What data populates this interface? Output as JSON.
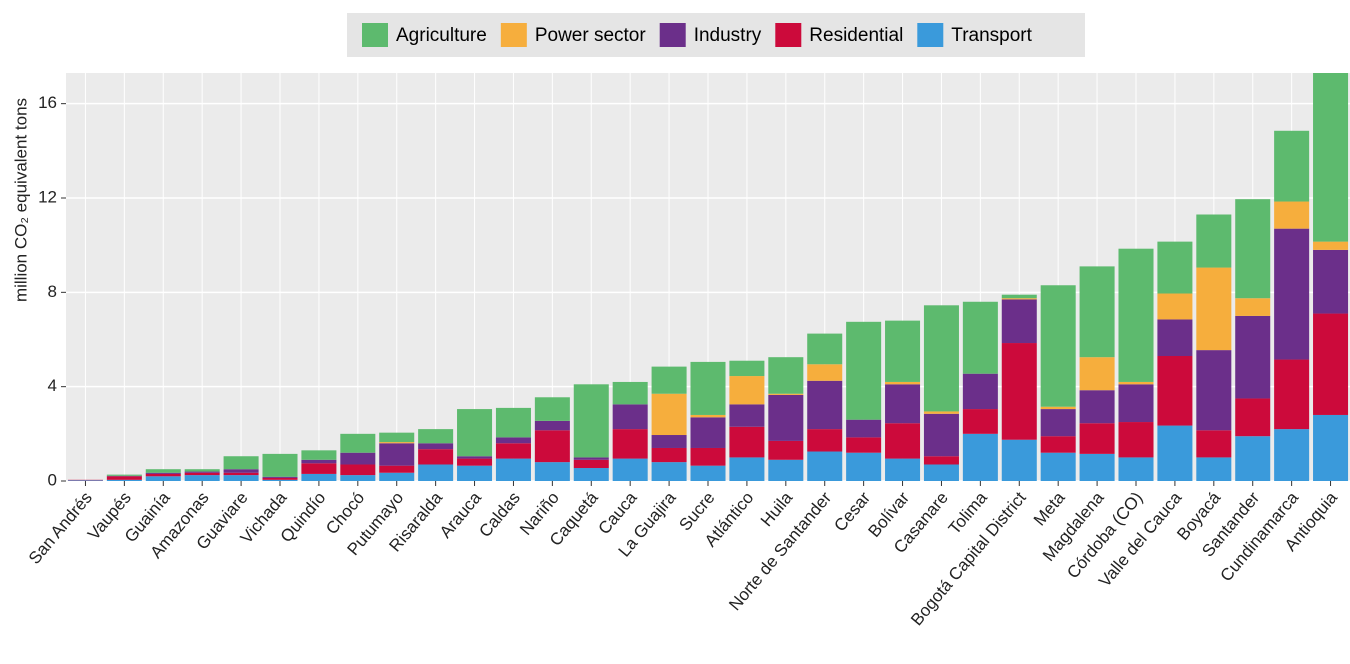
{
  "chart_data": {
    "type": "stacked_bar",
    "ylabel": "million CO₂ equivalent tons",
    "legend_position": "top",
    "grid": true,
    "ylim": [
      0,
      17.3
    ],
    "yticks": [
      0,
      4,
      8,
      12,
      16
    ],
    "categories": [
      "San Andrés",
      "Vaupés",
      "Guainía",
      "Amazonas",
      "Guaviare",
      "Vichada",
      "Quindío",
      "Chocó",
      "Putumayo",
      "Risaralda",
      "Arauca",
      "Caldas",
      "Nariño",
      "Caquetá",
      "Cauca",
      "La Guajira",
      "Sucre",
      "Atlántico",
      "Huila",
      "Norte de Santander",
      "Cesar",
      "Bolívar",
      "Casanare",
      "Tolima",
      "Bogotá Capital District",
      "Meta",
      "Magdalena",
      "Córdoba (CO)",
      "Valle del Cauca",
      "Boyacá",
      "Santander",
      "Cundinamarca",
      "Antioquia"
    ],
    "series": [
      {
        "name": "Agriculture",
        "color": "#5dba6e",
        "values": [
          0,
          0.05,
          0.15,
          0.1,
          0.55,
          0.97,
          0.4,
          0.8,
          0.4,
          0.6,
          2.0,
          1.25,
          1.0,
          3.1,
          0.95,
          1.15,
          2.25,
          0.65,
          1.55,
          1.3,
          4.15,
          2.6,
          4.5,
          3.05,
          0.15,
          5.15,
          3.85,
          5.65,
          2.2,
          2.25,
          4.2,
          3.0,
          7.15
        ]
      },
      {
        "name": "Power sector",
        "color": "#f6ae3d",
        "values": [
          0,
          0,
          0,
          0,
          0,
          0,
          0,
          0,
          0.05,
          0,
          0,
          0,
          0,
          0,
          0,
          1.75,
          0.1,
          1.2,
          0.05,
          0.7,
          0,
          0.1,
          0.1,
          0,
          0.05,
          0.1,
          1.4,
          0.1,
          1.1,
          3.5,
          0.75,
          1.15,
          0.35
        ]
      },
      {
        "name": "Industry",
        "color": "#6b2f8a",
        "values": [
          0,
          0.02,
          0.05,
          0.05,
          0.15,
          0.05,
          0.15,
          0.5,
          0.95,
          0.25,
          0.1,
          0.25,
          0.4,
          0.1,
          1.05,
          0.55,
          1.3,
          0.95,
          1.95,
          2.05,
          0.75,
          1.65,
          1.8,
          1.5,
          1.85,
          1.15,
          1.4,
          1.6,
          1.55,
          3.4,
          3.5,
          5.55,
          2.7
        ]
      },
      {
        "name": "Residential",
        "color": "#cc0a3b",
        "values": [
          0.02,
          0.15,
          0.1,
          0.1,
          0.1,
          0.08,
          0.45,
          0.45,
          0.3,
          0.65,
          0.3,
          0.65,
          1.35,
          0.35,
          1.25,
          0.6,
          0.75,
          1.3,
          0.8,
          0.95,
          0.65,
          1.5,
          0.35,
          1.05,
          4.1,
          0.7,
          1.3,
          1.5,
          2.95,
          1.15,
          1.6,
          2.95,
          4.3
        ]
      },
      {
        "name": "Transport",
        "color": "#3a9adb",
        "values": [
          0.03,
          0.05,
          0.2,
          0.25,
          0.25,
          0.05,
          0.3,
          0.25,
          0.35,
          0.7,
          0.65,
          0.95,
          0.8,
          0.55,
          0.95,
          0.8,
          0.65,
          1.0,
          0.9,
          1.25,
          1.2,
          0.95,
          0.7,
          2.0,
          1.75,
          1.2,
          1.15,
          1.0,
          2.35,
          1.0,
          1.9,
          2.2,
          2.8
        ]
      }
    ]
  }
}
